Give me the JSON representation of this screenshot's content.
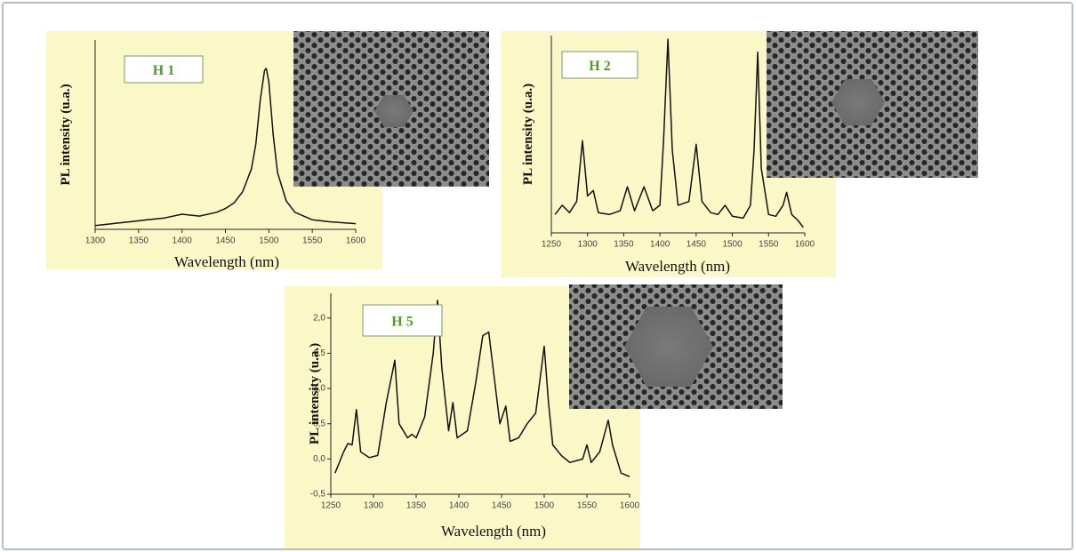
{
  "chart_data": [
    {
      "type": "line",
      "label": "H 1",
      "x_label": "Wavelength (nm)",
      "y_label": "PL intensity (u.a.)",
      "color": "#111111",
      "x": [
        1300,
        1320,
        1340,
        1360,
        1380,
        1400,
        1420,
        1440,
        1450,
        1460,
        1470,
        1480,
        1485,
        1490,
        1495,
        1497,
        1500,
        1505,
        1510,
        1520,
        1530,
        1550,
        1570,
        1600
      ],
      "values": [
        0.02,
        0.03,
        0.04,
        0.05,
        0.06,
        0.08,
        0.07,
        0.09,
        0.11,
        0.14,
        0.2,
        0.32,
        0.45,
        0.68,
        0.84,
        0.85,
        0.78,
        0.5,
        0.3,
        0.15,
        0.09,
        0.05,
        0.04,
        0.03
      ],
      "xlim": [
        1300,
        1600
      ],
      "xticks": [
        1300,
        1350,
        1400,
        1450,
        1500,
        1550,
        1600
      ],
      "ylim": [
        0,
        1
      ]
    },
    {
      "type": "line",
      "label": "H 2",
      "x_label": "Wavelength (nm)",
      "y_label": "PL intensity (u.a.)",
      "color": "#111111",
      "x": [
        1255,
        1265,
        1275,
        1285,
        1293,
        1300,
        1308,
        1315,
        1330,
        1345,
        1355,
        1365,
        1378,
        1390,
        1400,
        1405,
        1411,
        1417,
        1425,
        1440,
        1450,
        1458,
        1470,
        1480,
        1490,
        1500,
        1515,
        1525,
        1530,
        1535,
        1540,
        1550,
        1560,
        1570,
        1575,
        1582,
        1590,
        1598
      ],
      "values": [
        0.05,
        0.1,
        0.06,
        0.12,
        0.45,
        0.15,
        0.18,
        0.06,
        0.05,
        0.07,
        0.2,
        0.07,
        0.2,
        0.07,
        0.1,
        0.45,
        1.0,
        0.4,
        0.1,
        0.12,
        0.43,
        0.12,
        0.06,
        0.05,
        0.1,
        0.04,
        0.03,
        0.1,
        0.4,
        0.93,
        0.3,
        0.05,
        0.04,
        0.1,
        0.17,
        0.05,
        0.02,
        -0.02
      ],
      "xlim": [
        1250,
        1600
      ],
      "xticks": [
        1250,
        1300,
        1350,
        1400,
        1450,
        1500,
        1550,
        1600
      ],
      "ylim": [
        -0.05,
        1.02
      ]
    },
    {
      "type": "line",
      "label": "H 5",
      "x_label": "Wavelength (nm)",
      "y_label": "PL intensity (u.a.)",
      "color": "#111111",
      "x": [
        1255,
        1265,
        1270,
        1275,
        1280,
        1285,
        1295,
        1305,
        1315,
        1325,
        1330,
        1340,
        1345,
        1350,
        1360,
        1370,
        1375,
        1380,
        1388,
        1393,
        1398,
        1410,
        1420,
        1428,
        1435,
        1440,
        1448,
        1455,
        1460,
        1470,
        1480,
        1490,
        1500,
        1505,
        1510,
        1520,
        1530,
        1545,
        1550,
        1555,
        1565,
        1575,
        1580,
        1590,
        1600
      ],
      "values": [
        -0.2,
        0.1,
        0.22,
        0.2,
        0.7,
        0.1,
        0.02,
        0.05,
        0.8,
        1.4,
        0.5,
        0.3,
        0.35,
        0.3,
        0.6,
        1.5,
        2.25,
        1.3,
        0.4,
        0.8,
        0.3,
        0.4,
        1.1,
        1.75,
        1.8,
        1.3,
        0.5,
        0.75,
        0.25,
        0.3,
        0.5,
        0.65,
        1.6,
        0.8,
        0.2,
        0.05,
        -0.05,
        0.0,
        0.2,
        -0.05,
        0.1,
        0.55,
        0.2,
        -0.2,
        -0.25
      ],
      "xlim": [
        1250,
        1600
      ],
      "xticks": [
        1250,
        1300,
        1350,
        1400,
        1450,
        1500,
        1550,
        1600
      ],
      "ylim": [
        -0.5,
        2.35
      ],
      "yticks": [
        {
          "value": -0.5,
          "label": "-0,5"
        },
        {
          "value": 0.0,
          "label": "0,0"
        },
        {
          "value": 0.5,
          "label": "0,5"
        },
        {
          "value": 1.0,
          "label": "1,0"
        },
        {
          "value": 1.5,
          "label": "1,5"
        },
        {
          "value": 2.0,
          "label": "2,0"
        }
      ]
    }
  ]
}
